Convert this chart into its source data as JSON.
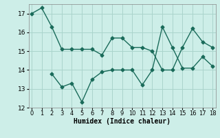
{
  "xlabel": "Humidex (Indice chaleur)",
  "line1_x": [
    0,
    1,
    2,
    3,
    4,
    5,
    6,
    7,
    8,
    9,
    10,
    11,
    12,
    13,
    14,
    15,
    16,
    17,
    18
  ],
  "line1_y": [
    17.0,
    17.3,
    16.3,
    15.1,
    15.1,
    15.1,
    15.1,
    14.8,
    15.7,
    15.7,
    15.2,
    15.2,
    15.0,
    14.0,
    14.0,
    15.2,
    16.2,
    15.5,
    15.2
  ],
  "line2_x": [
    2,
    3,
    4,
    5,
    6,
    7,
    8,
    9,
    10,
    11,
    12,
    13,
    14,
    15,
    16,
    17,
    18
  ],
  "line2_y": [
    13.8,
    13.1,
    13.3,
    12.3,
    13.5,
    13.9,
    14.0,
    14.0,
    14.0,
    13.2,
    14.0,
    16.3,
    15.2,
    14.1,
    14.1,
    14.7,
    14.2
  ],
  "line_color": "#1a6b5a",
  "background_color": "#cdeee8",
  "grid_color": "#aad4cc",
  "ylim": [
    12,
    17.5
  ],
  "xlim": [
    -0.3,
    18.3
  ],
  "yticks": [
    12,
    13,
    14,
    15,
    16,
    17
  ],
  "xticks": [
    0,
    1,
    2,
    3,
    4,
    5,
    6,
    7,
    8,
    9,
    10,
    11,
    12,
    13,
    14,
    15,
    16,
    17,
    18
  ],
  "marker": "D",
  "markersize": 2.5,
  "linewidth": 1.0
}
